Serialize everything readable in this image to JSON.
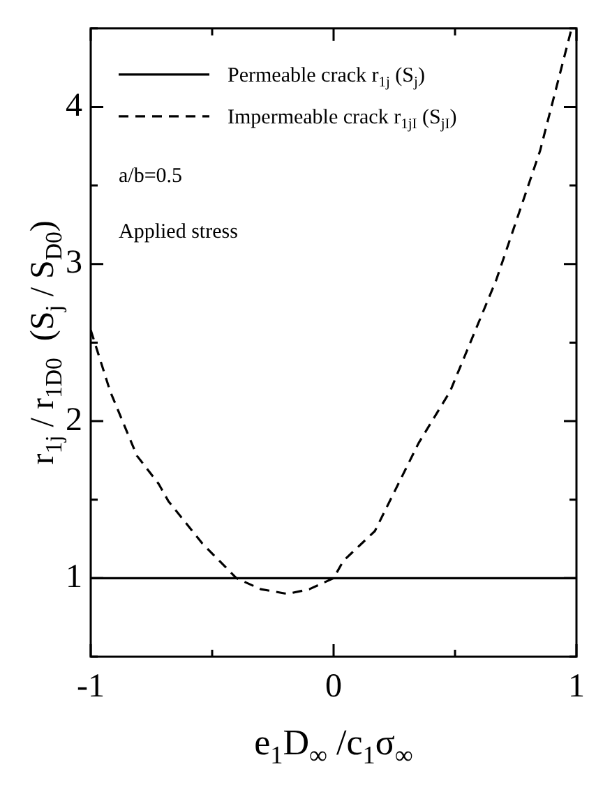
{
  "chart_data": {
    "type": "line",
    "xlabel": "e$_{1}$D$_{∞}$ /c$_{1}$σ$_{∞}$",
    "ylabel": "r$_{1j}$ / r$_{1D0}$  (S$_{j}$ / S$_{D0}$)",
    "xlim": [
      -1,
      1
    ],
    "ylim": [
      0.5,
      4.5
    ],
    "xticks": [
      -1,
      {
        "value": -0.5,
        "label": null
      },
      0,
      {
        "value": 0.5,
        "label": null
      },
      1
    ],
    "yticks": [
      {
        "value": 0.5,
        "label": null
      },
      1,
      {
        "value": 1.5,
        "label": null
      },
      2,
      {
        "value": 2.5,
        "label": null
      },
      3,
      {
        "value": 3.5,
        "label": null
      },
      4,
      {
        "value": 4.5,
        "label": null
      }
    ],
    "grid": false,
    "legend": "top left",
    "marker": "none",
    "annotations": [
      "a/b=0.5",
      "Applied stress"
    ],
    "series": [
      {
        "name": "Permeable crack r$_{1j}$ (S$_{j}$)",
        "color": "#000000",
        "line_style": "solid",
        "x": [
          -1,
          1
        ],
        "values": [
          1,
          1
        ]
      },
      {
        "name": "Impermeable crack r$_{1jI}$ (S$_{jI}$)",
        "color": "#000000",
        "line_style": "dashed",
        "x": [
          -1,
          -0.92,
          -0.81,
          -0.72,
          -0.68,
          -0.54,
          -0.4,
          -0.3,
          -0.19,
          -0.1,
          0,
          0.04,
          0.17,
          0.35,
          0.48,
          0.67,
          0.85,
          0.96,
          0.98
        ],
        "values": [
          2.58,
          2.19,
          1.78,
          1.6,
          1.49,
          1.22,
          1.0,
          0.93,
          0.9,
          0.93,
          1.0,
          1.11,
          1.3,
          1.86,
          2.19,
          2.9,
          3.72,
          4.38,
          4.5
        ]
      }
    ]
  }
}
